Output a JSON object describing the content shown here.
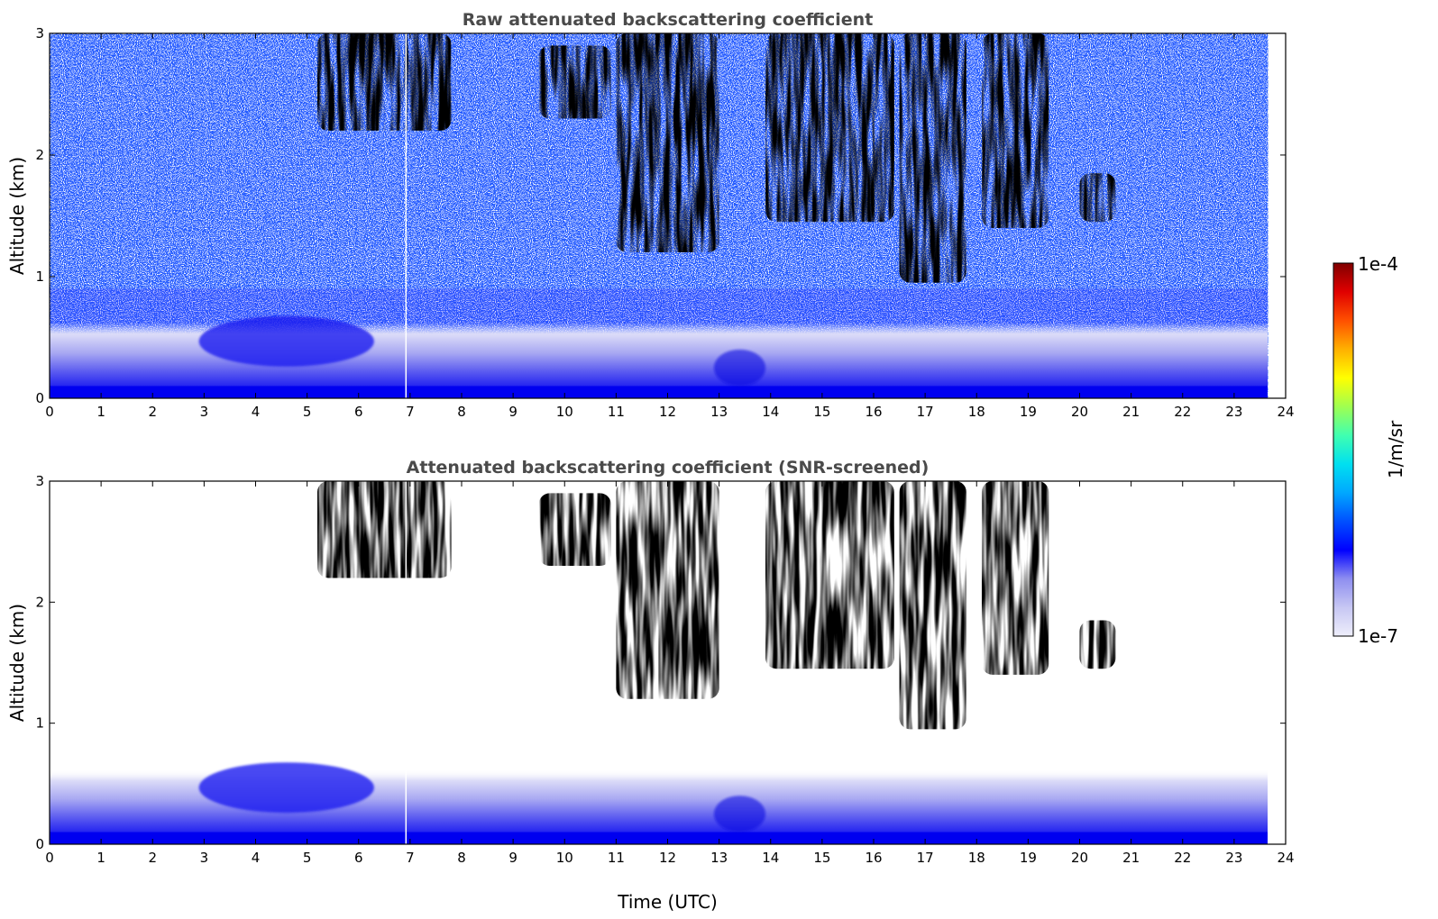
{
  "chart_data": {
    "type": "heatmap",
    "x_unit": "UTC hours",
    "y_unit": "km",
    "xlabel": "Time (UTC)",
    "ylabel": "Altitude (km)",
    "xlim": [
      0,
      24
    ],
    "ylim": [
      0,
      3
    ],
    "xticks": [
      "0",
      "1",
      "2",
      "3",
      "4",
      "5",
      "6",
      "7",
      "8",
      "9",
      "10",
      "11",
      "12",
      "13",
      "14",
      "15",
      "16",
      "17",
      "18",
      "19",
      "20",
      "21",
      "22",
      "23",
      "24"
    ],
    "yticks": [
      "0",
      "1",
      "2",
      "3"
    ],
    "data_end_time": 23.65,
    "colorbar": {
      "label": "1/m/sr",
      "min_label": "1e-7",
      "max_label": "1e-4",
      "scale": "log",
      "colormap": "jet (white-lavender at low end)",
      "stops": [
        "#eeeefb",
        "#c7c7f3",
        "#8e8ef0",
        "#0000ff",
        "#0050ff",
        "#00a8ff",
        "#00e0f0",
        "#40ffb0",
        "#a0ff50",
        "#ffff00",
        "#ffb000",
        "#ff5000",
        "#e00000",
        "#800000"
      ]
    },
    "panels": [
      {
        "title": "Raw attenuated backscattering coefficient",
        "cloud_features": [
          {
            "t_start": 5.2,
            "t_end": 7.8,
            "alt_bottom": 2.2,
            "alt_top": 3.0,
            "intensity": 0.95
          },
          {
            "t_start": 9.5,
            "t_end": 10.9,
            "alt_bottom": 2.3,
            "alt_top": 2.9,
            "intensity": 0.9
          },
          {
            "t_start": 11.0,
            "t_end": 13.0,
            "alt_bottom": 1.2,
            "alt_top": 3.0,
            "intensity": 0.65
          },
          {
            "t_start": 13.9,
            "t_end": 16.4,
            "alt_bottom": 1.45,
            "alt_top": 3.0,
            "intensity": 0.6
          },
          {
            "t_start": 16.5,
            "t_end": 17.8,
            "alt_bottom": 0.95,
            "alt_top": 3.0,
            "intensity": 0.62
          },
          {
            "t_start": 18.1,
            "t_end": 19.4,
            "alt_bottom": 1.4,
            "alt_top": 3.0,
            "intensity": 0.55
          },
          {
            "t_start": 20.0,
            "t_end": 20.7,
            "alt_bottom": 1.45,
            "alt_top": 1.85,
            "intensity": 0.42
          }
        ],
        "boundary_layer": {
          "t_start": 2.9,
          "t_end": 6.3,
          "alt_top": 0.65
        }
      },
      {
        "title": "Attenuated backscattering coefficient (SNR-screened)",
        "cloud_features": [
          {
            "t_start": 5.2,
            "t_end": 7.8,
            "alt_bottom": 2.2,
            "alt_top": 3.0,
            "intensity": 1.0
          },
          {
            "t_start": 9.5,
            "t_end": 10.9,
            "alt_bottom": 2.3,
            "alt_top": 2.9,
            "intensity": 0.95
          },
          {
            "t_start": 11.0,
            "t_end": 13.0,
            "alt_bottom": 1.2,
            "alt_top": 3.0,
            "intensity": 0.65
          },
          {
            "t_start": 13.9,
            "t_end": 16.4,
            "alt_bottom": 1.45,
            "alt_top": 3.0,
            "intensity": 0.6
          },
          {
            "t_start": 16.5,
            "t_end": 17.8,
            "alt_bottom": 0.95,
            "alt_top": 3.0,
            "intensity": 0.62
          },
          {
            "t_start": 18.1,
            "t_end": 19.4,
            "alt_bottom": 1.4,
            "alt_top": 3.0,
            "intensity": 0.55
          },
          {
            "t_start": 20.0,
            "t_end": 20.7,
            "alt_bottom": 1.45,
            "alt_top": 1.85,
            "intensity": 0.42
          }
        ],
        "boundary_layer": {
          "t_start": 2.9,
          "t_end": 6.3,
          "alt_top": 0.65
        }
      }
    ]
  }
}
